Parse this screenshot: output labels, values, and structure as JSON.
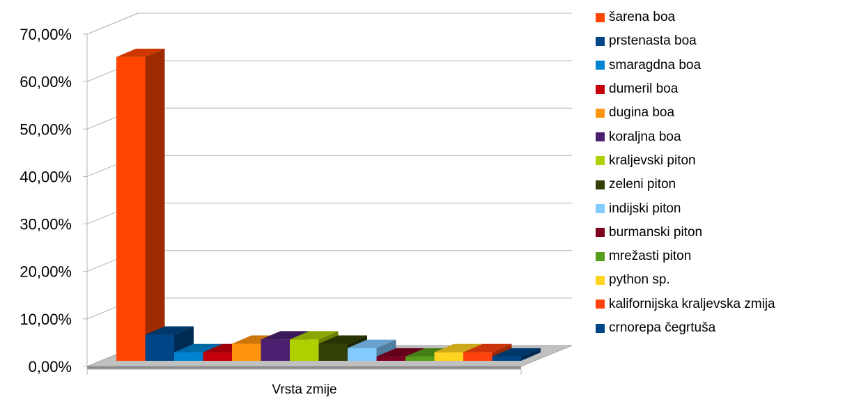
{
  "chart_data": {
    "type": "bar",
    "style": "3d-clustered-column",
    "xlabel": "Vrsta zmije",
    "ylabel": "",
    "ylim": [
      0,
      70
    ],
    "y_ticks": [
      "0,00%",
      "10,00%",
      "20,00%",
      "30,00%",
      "40,00%",
      "50,00%",
      "60,00%",
      "70,00%"
    ],
    "grid": true,
    "legend_position": "right",
    "categories": [
      "Vrsta zmije"
    ],
    "series": [
      {
        "name": "šarena boa",
        "values": [
          64.0
        ],
        "color": "#FF4500"
      },
      {
        "name": "prstenasta boa",
        "values": [
          5.5
        ],
        "color": "#004586"
      },
      {
        "name": "smaragdna boa",
        "values": [
          1.8
        ],
        "color": "#0084D1"
      },
      {
        "name": "dumeril boa",
        "values": [
          1.8
        ],
        "color": "#C5000B"
      },
      {
        "name": "dugina boa",
        "values": [
          3.6
        ],
        "color": "#FF950E"
      },
      {
        "name": "koraljna boa",
        "values": [
          4.5
        ],
        "color": "#4B1F6F"
      },
      {
        "name": "kraljevski piton",
        "values": [
          4.5
        ],
        "color": "#AECF00"
      },
      {
        "name": "zeleni piton",
        "values": [
          3.6
        ],
        "color": "#314004"
      },
      {
        "name": "indijski piton",
        "values": [
          2.7
        ],
        "color": "#83CAFF"
      },
      {
        "name": "burmanski piton",
        "values": [
          0.9
        ],
        "color": "#7E0021"
      },
      {
        "name": "mrežasti piton",
        "values": [
          0.9
        ],
        "color": "#579D1C"
      },
      {
        "name": "python sp.",
        "values": [
          1.8
        ],
        "color": "#FFD320"
      },
      {
        "name": "kalifornijska kraljevska zmija",
        "values": [
          1.8
        ],
        "color": "#FF420E"
      },
      {
        "name": "crnorepa čegrtuša",
        "values": [
          0.9
        ],
        "color": "#004586"
      }
    ]
  }
}
